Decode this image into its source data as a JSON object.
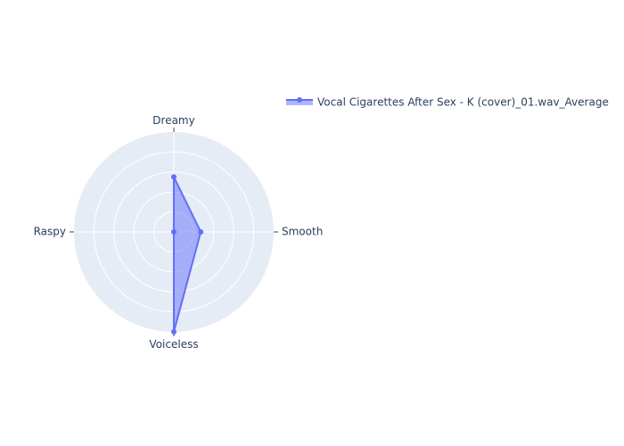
{
  "chart_data": {
    "type": "radar",
    "categories": [
      "Dreamy",
      "Smooth",
      "Voiceless",
      "Raspy"
    ],
    "series": [
      {
        "name": "Vocal Cigarettes After Sex - K (cover)_01.wav_Average",
        "values": [
          0.55,
          0.27,
          1.0,
          0.0
        ]
      }
    ],
    "rlim": [
      0,
      1
    ],
    "rgrid_count": 5,
    "grid": true,
    "legend_position": "top-right",
    "colors": {
      "polar_bg": "#e5ecf6",
      "grid": "#ffffff",
      "series_line": "#636efa",
      "series_fill": "#636efa",
      "text": "#2a3f5f"
    }
  }
}
